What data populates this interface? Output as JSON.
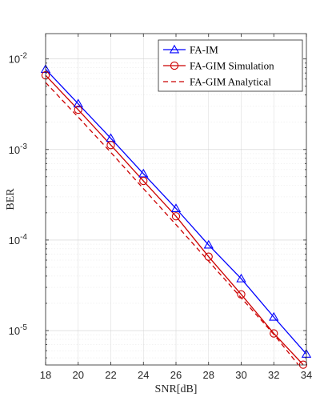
{
  "chart_data": {
    "type": "line",
    "title": "",
    "xlabel": "SNR[dB]",
    "ylabel": "BER",
    "xlim": [
      18,
      34
    ],
    "ylim_exp": [
      -5.38,
      -1.72
    ],
    "yscale": "log",
    "grid": true,
    "legend_position": "top-right",
    "xticks": [
      "18",
      "20",
      "22",
      "24",
      "26",
      "28",
      "30",
      "32",
      "34"
    ],
    "yticks": [
      {
        "base": "10",
        "exp": "-2",
        "value": 0.01
      },
      {
        "base": "10",
        "exp": "-3",
        "value": 0.001
      },
      {
        "base": "10",
        "exp": "-4",
        "value": 0.0001
      },
      {
        "base": "10",
        "exp": "-5",
        "value": 1e-05
      }
    ],
    "series": [
      {
        "name": "FA-IM",
        "color": "#0000ff",
        "line": "solid",
        "marker": "triangle",
        "x": [
          18,
          20,
          22,
          24,
          26,
          28,
          30,
          32,
          34
        ],
        "y": [
          0.0077,
          0.0032,
          0.00133,
          0.00054,
          0.000223,
          8.82e-05,
          3.74e-05,
          1.41e-05,
          5.5e-06
        ]
      },
      {
        "name": "FA-GIM Simulation",
        "color": "#cc0000",
        "line": "solid",
        "marker": "circle",
        "x": [
          18,
          20,
          22,
          24,
          26,
          28,
          30,
          32,
          33.8
        ],
        "y": [
          0.0066,
          0.00275,
          0.00112,
          0.00045,
          0.000183,
          6.55e-05,
          2.51e-05,
          9.3e-06,
          4.2e-06
        ]
      },
      {
        "name": "FA-GIM Analytical",
        "color": "#cc0000",
        "line": "dashed",
        "marker": "none",
        "x": [
          18,
          20,
          22,
          24,
          26,
          28,
          30,
          32,
          33.5
        ],
        "y": [
          0.0055,
          0.00228,
          0.00093,
          0.00037,
          0.000148,
          5.85e-05,
          2.3e-05,
          9.1e-06,
          4.2e-06
        ]
      }
    ]
  }
}
